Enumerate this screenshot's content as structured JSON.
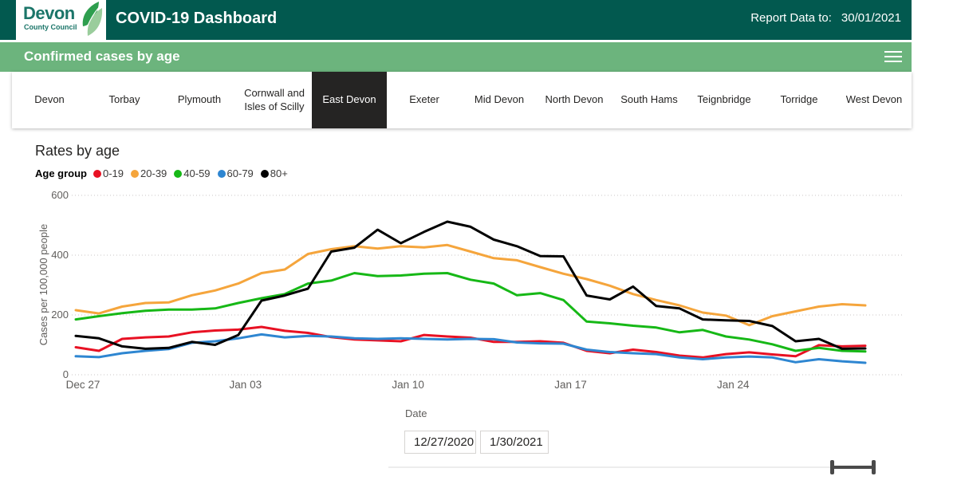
{
  "header": {
    "logo_line1": "Devon",
    "logo_line2": "County Council",
    "title": "COVID-19 Dashboard",
    "report_label": "Report Data to:",
    "report_date": "30/01/2021"
  },
  "section": {
    "title": "Confirmed cases by age"
  },
  "tabs": [
    {
      "label": "Devon",
      "selected": false
    },
    {
      "label": "Torbay",
      "selected": false
    },
    {
      "label": "Plymouth",
      "selected": false
    },
    {
      "label": "Cornwall and Isles of Scilly",
      "selected": false
    },
    {
      "label": "East Devon",
      "selected": true
    },
    {
      "label": "Exeter",
      "selected": false
    },
    {
      "label": "Mid Devon",
      "selected": false
    },
    {
      "label": "North Devon",
      "selected": false
    },
    {
      "label": "South Hams",
      "selected": false
    },
    {
      "label": "Teignbridge",
      "selected": false
    },
    {
      "label": "Torridge",
      "selected": false
    },
    {
      "label": "West Devon",
      "selected": false
    }
  ],
  "chart": {
    "title": "Rates by age",
    "legend_title": "Age group"
  },
  "chart_data": {
    "type": "line",
    "title": "Rates by age",
    "xlabel": "Date",
    "ylabel": "Cases per 100,000 people",
    "ylim": [
      0,
      600
    ],
    "yticks": [
      0,
      200,
      400,
      600
    ],
    "grid": "horizontal-dotted",
    "legend_position": "top-left",
    "legend_title": "Age group",
    "x": [
      "Dec 27",
      "Dec 28",
      "Dec 29",
      "Dec 30",
      "Dec 31",
      "Jan 01",
      "Jan 02",
      "Jan 03",
      "Jan 04",
      "Jan 05",
      "Jan 06",
      "Jan 07",
      "Jan 08",
      "Jan 09",
      "Jan 10",
      "Jan 11",
      "Jan 12",
      "Jan 13",
      "Jan 14",
      "Jan 15",
      "Jan 16",
      "Jan 17",
      "Jan 18",
      "Jan 19",
      "Jan 20",
      "Jan 21",
      "Jan 22",
      "Jan 23",
      "Jan 24",
      "Jan 25",
      "Jan 26",
      "Jan 27",
      "Jan 28",
      "Jan 29",
      "Jan 30"
    ],
    "x_tick_indices": [
      0,
      7,
      14,
      21,
      28
    ],
    "x_tick_labels": [
      "Dec 27",
      "Jan 03",
      "Jan 10",
      "Jan 17",
      "Jan 24"
    ],
    "series": [
      {
        "name": "0-19",
        "color": "#E81123",
        "values": [
          92,
          80,
          120,
          125,
          128,
          142,
          148,
          151,
          160,
          147,
          140,
          126,
          118,
          115,
          112,
          133,
          128,
          124,
          110,
          110,
          112,
          107,
          80,
          72,
          84,
          76,
          64,
          58,
          69,
          75,
          68,
          62,
          99,
          95,
          97
        ]
      },
      {
        "name": "20-39",
        "color": "#F5A53C",
        "values": [
          216,
          205,
          228,
          240,
          242,
          266,
          282,
          305,
          340,
          352,
          404,
          420,
          430,
          422,
          430,
          426,
          434,
          412,
          390,
          383,
          360,
          338,
          320,
          298,
          270,
          250,
          232,
          208,
          198,
          166,
          196,
          212,
          228,
          236,
          232
        ]
      },
      {
        "name": "40-59",
        "color": "#16B816",
        "values": [
          185,
          196,
          206,
          214,
          218,
          218,
          222,
          240,
          256,
          270,
          305,
          315,
          340,
          330,
          332,
          338,
          340,
          318,
          305,
          266,
          273,
          250,
          178,
          172,
          164,
          158,
          142,
          150,
          128,
          118,
          102,
          80,
          90,
          80,
          78
        ]
      },
      {
        "name": "60-79",
        "color": "#2E86D1",
        "values": [
          62,
          59,
          72,
          80,
          86,
          107,
          112,
          122,
          135,
          125,
          130,
          128,
          122,
          120,
          122,
          120,
          118,
          120,
          119,
          108,
          105,
          104,
          84,
          76,
          72,
          69,
          58,
          52,
          58,
          61,
          58,
          42,
          52,
          45,
          40
        ]
      },
      {
        "name": "80+",
        "color": "#000000",
        "values": [
          130,
          122,
          95,
          87,
          90,
          110,
          100,
          133,
          248,
          265,
          288,
          412,
          425,
          485,
          440,
          478,
          512,
          495,
          452,
          430,
          397,
          396,
          265,
          252,
          295,
          230,
          222,
          185,
          182,
          180,
          163,
          112,
          120,
          87,
          88
        ]
      }
    ]
  },
  "date_filter": {
    "label": "Date",
    "start_value": "12/27/2020",
    "end_value": "1/30/2021"
  },
  "colors": {
    "header_bg": "#02594F",
    "section_bg": "#6CB47D",
    "selected_tab_bg": "#252423",
    "gridline": "#C8C6C4",
    "axis_text": "#605E5C"
  }
}
